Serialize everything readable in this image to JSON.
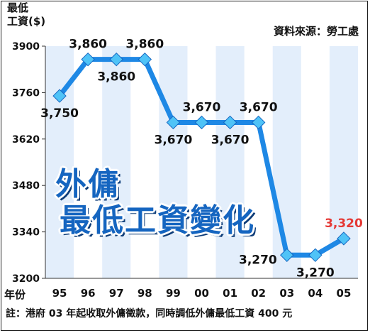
{
  "header": {
    "ylabel": "最低\n工資($)",
    "source": "資料來源：勞工處"
  },
  "headline": {
    "line1": "外傭",
    "line2": "最低工資變化"
  },
  "footer": {
    "x_prefix": "年份",
    "note": "註：港府 03 年起收取外傭徵款，同時調低外傭最低工資 400 元"
  },
  "colors": {
    "line": "#1e88e5",
    "stripe": "#e3eefb",
    "marker": "#4fc3f7",
    "highlight": "#e53935"
  },
  "chart_data": {
    "type": "line",
    "title": "",
    "xlabel": "年份",
    "ylabel": "最低工資($)",
    "categories": [
      "95",
      "96",
      "97",
      "98",
      "99",
      "00",
      "01",
      "02",
      "03",
      "04",
      "05"
    ],
    "values": [
      3750,
      3860,
      3860,
      3860,
      3670,
      3670,
      3670,
      3670,
      3270,
      3270,
      3320
    ],
    "labels": [
      "3,750",
      "3,860",
      "3,860",
      "3,860",
      "3,670",
      "3,670",
      "3,670",
      "3,670",
      "3,270",
      "3,270",
      "3,320"
    ],
    "label_pos": [
      "below",
      "above",
      "below",
      "above",
      "below",
      "above",
      "below",
      "above",
      "left",
      "below",
      "above"
    ],
    "highlight_index": 10,
    "ylim": [
      3200,
      3900
    ],
    "yticks": [
      3200,
      3340,
      3480,
      3620,
      3760,
      3900
    ],
    "grid": false
  }
}
